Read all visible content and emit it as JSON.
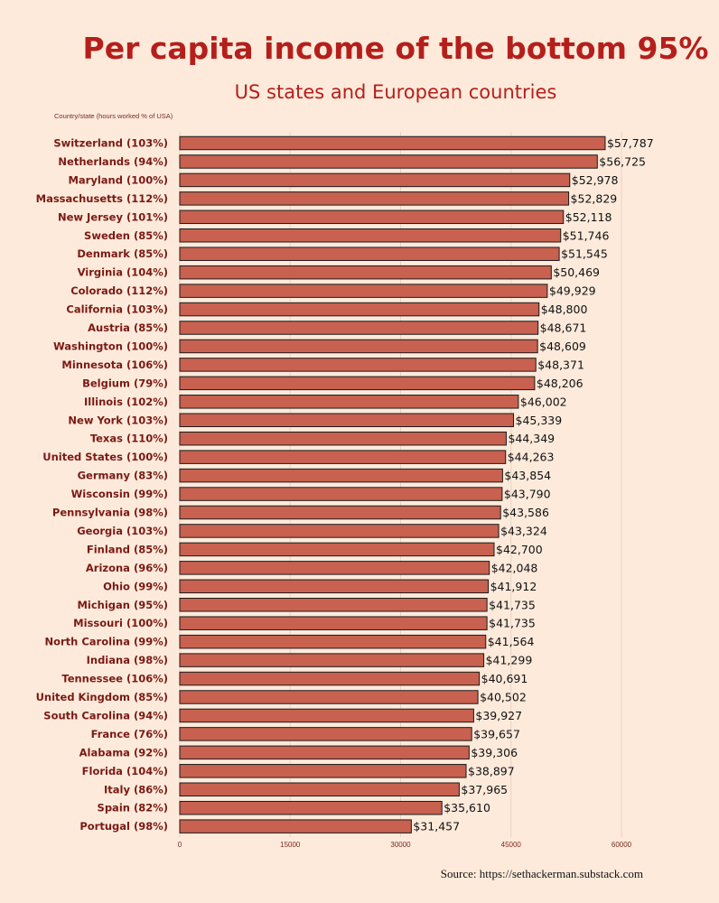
{
  "colors": {
    "background": "#fdeadb",
    "bar_fill": "#c8614f",
    "bar_stroke": "#1a1a1a",
    "title": "#b51f1b",
    "label": "#7a1a14",
    "grid": "#e6d3c6"
  },
  "header": {
    "title": "Per capita income of the bottom 95%",
    "subtitle": "US states and European countries",
    "column_label": "Country/state  (hours worked % of USA)"
  },
  "footer": {
    "source": "Source: https://sethackerman.substack.com"
  },
  "chart_data": {
    "type": "bar",
    "orientation": "horizontal",
    "title": "Per capita income of the bottom 95%",
    "subtitle": "US states and European countries",
    "xlim": [
      0,
      60000
    ],
    "xticks": [
      0,
      15000,
      30000,
      45000,
      60000
    ],
    "xtick_labels": [
      "0",
      "15000",
      "30000",
      "45000",
      "60000"
    ],
    "grid": true,
    "categories": [
      "Switzerland (103%)",
      "Netherlands (94%)",
      "Maryland (100%)",
      "Massachusetts (112%)",
      "New Jersey (101%)",
      "Sweden (85%)",
      "Denmark (85%)",
      "Virginia (104%)",
      "Colorado (112%)",
      "California (103%)",
      "Austria (85%)",
      "Washington (100%)",
      "Minnesota (106%)",
      "Belgium (79%)",
      "Illinois (102%)",
      "New York (103%)",
      "Texas (110%)",
      "United States (100%)",
      "Germany (83%)",
      "Wisconsin (99%)",
      "Pennsylvania (98%)",
      "Georgia (103%)",
      "Finland (85%)",
      "Arizona (96%)",
      "Ohio (99%)",
      "Michigan (95%)",
      "Missouri (100%)",
      "North Carolina (99%)",
      "Indiana (98%)",
      "Tennessee (106%)",
      "United Kingdom (85%)",
      "South Carolina (94%)",
      "France (76%)",
      "Alabama (92%)",
      "Florida (104%)",
      "Italy (86%)",
      "Spain (82%)",
      "Portugal (98%)"
    ],
    "values": [
      57787,
      56725,
      52978,
      52829,
      52118,
      51746,
      51545,
      50469,
      49929,
      48800,
      48671,
      48609,
      48371,
      48206,
      46002,
      45339,
      44349,
      44263,
      43854,
      43790,
      43586,
      43324,
      42700,
      42048,
      41912,
      41735,
      41735,
      41564,
      41299,
      40691,
      40502,
      39927,
      39657,
      39306,
      38897,
      37965,
      35610,
      31457
    ],
    "value_labels": [
      "$57,787",
      "$56,725",
      "$52,978",
      "$52,829",
      "$52,118",
      "$51,746",
      "$51,545",
      "$50,469",
      "$49,929",
      "$48,800",
      "$48,671",
      "$48,609",
      "$48,371",
      "$48,206",
      "$46,002",
      "$45,339",
      "$44,349",
      "$44,263",
      "$43,854",
      "$43,790",
      "$43,586",
      "$43,324",
      "$42,700",
      "$42,048",
      "$41,912",
      "$41,735",
      "$41,735",
      "$41,564",
      "$41,299",
      "$40,691",
      "$40,502",
      "$39,927",
      "$39,657",
      "$39,306",
      "$38,897",
      "$37,965",
      "$35,610",
      "$31,457"
    ]
  }
}
